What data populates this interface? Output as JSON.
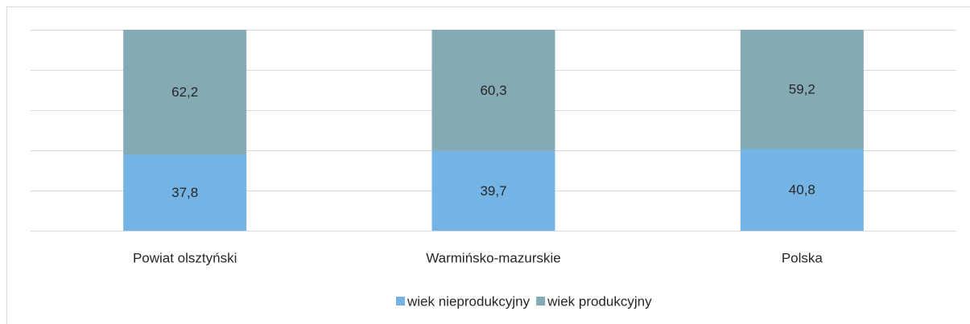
{
  "chart_data": {
    "type": "stacked_bar",
    "categories": [
      "Powiat olsztyński",
      "Warmińsko-mazurskie",
      "Polska"
    ],
    "series": [
      {
        "name": "wiek nieprodukcyjny",
        "color": "#74b4e4",
        "values": [
          37.8,
          39.7,
          40.8
        ],
        "value_labels": [
          "37,8",
          "39,7",
          "40,8"
        ]
      },
      {
        "name": "wiek produkcyjny",
        "color": "#84abb5",
        "values": [
          62.2,
          60.3,
          59.2
        ],
        "value_labels": [
          "62,2",
          "60,3",
          "59,2"
        ]
      }
    ],
    "ylim": [
      0,
      100
    ],
    "yticks": [
      0,
      20,
      40,
      60,
      80,
      100
    ],
    "grid": true,
    "legend": "bottom"
  }
}
